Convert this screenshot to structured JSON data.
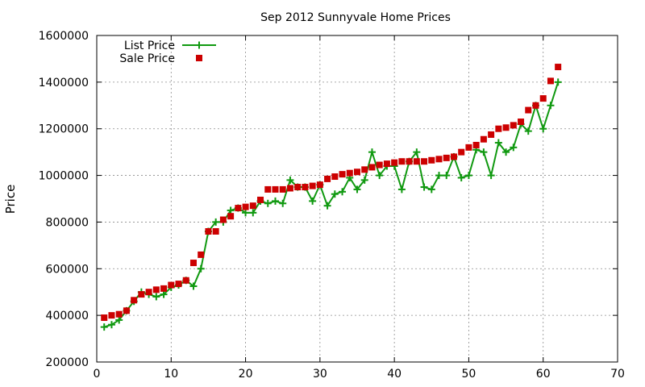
{
  "chart_data": {
    "type": "scatter",
    "title": "Sep 2012 Sunnyvale Home Prices",
    "xlabel": "",
    "ylabel": "Price",
    "xlim": [
      0,
      70
    ],
    "ylim": [
      200000,
      1600000
    ],
    "xticks": [
      0,
      10,
      20,
      30,
      40,
      50,
      60,
      70
    ],
    "yticks": [
      200000,
      400000,
      600000,
      800000,
      1000000,
      1200000,
      1400000,
      1600000
    ],
    "grid": true,
    "legend_position": "top-left",
    "series": [
      {
        "name": "List Price",
        "style": "line-with-plus-markers",
        "color": "#109910",
        "x": [
          1,
          2,
          3,
          4,
          5,
          6,
          7,
          8,
          9,
          10,
          11,
          12,
          13,
          14,
          15,
          16,
          17,
          18,
          19,
          20,
          21,
          22,
          23,
          24,
          25,
          26,
          27,
          28,
          29,
          30,
          31,
          32,
          33,
          34,
          35,
          36,
          37,
          38,
          39,
          40,
          41,
          42,
          43,
          44,
          45,
          46,
          47,
          48,
          49,
          50,
          51,
          52,
          53,
          54,
          55,
          56,
          57,
          58,
          59,
          60,
          61,
          62
        ],
        "y": [
          350000,
          360000,
          380000,
          420000,
          460000,
          500000,
          490000,
          480000,
          490000,
          520000,
          530000,
          550000,
          525000,
          600000,
          760000,
          800000,
          800000,
          850000,
          860000,
          840000,
          840000,
          890000,
          880000,
          890000,
          880000,
          980000,
          950000,
          950000,
          890000,
          960000,
          870000,
          920000,
          930000,
          990000,
          940000,
          980000,
          1100000,
          1000000,
          1040000,
          1040000,
          940000,
          1060000,
          1100000,
          950000,
          940000,
          1000000,
          1000000,
          1080000,
          990000,
          1000000,
          1110000,
          1100000,
          1000000,
          1140000,
          1100000,
          1120000,
          1220000,
          1190000,
          1300000,
          1200000,
          1300000,
          1400000
        ]
      },
      {
        "name": "Sale Price",
        "style": "square-markers",
        "color": "#cc0000",
        "x": [
          1,
          2,
          3,
          4,
          5,
          6,
          7,
          8,
          9,
          10,
          11,
          12,
          13,
          14,
          15,
          16,
          17,
          18,
          19,
          20,
          21,
          22,
          23,
          24,
          25,
          26,
          27,
          28,
          29,
          30,
          31,
          32,
          33,
          34,
          35,
          36,
          37,
          38,
          39,
          40,
          41,
          42,
          43,
          44,
          45,
          46,
          47,
          48,
          49,
          50,
          51,
          52,
          53,
          54,
          55,
          56,
          57,
          58,
          59,
          60,
          61,
          62
        ],
        "y": [
          390000,
          400000,
          405000,
          420000,
          465000,
          490000,
          500000,
          510000,
          515000,
          530000,
          535000,
          550000,
          625000,
          660000,
          760000,
          760000,
          810000,
          825000,
          860000,
          865000,
          870000,
          895000,
          940000,
          940000,
          940000,
          945000,
          950000,
          950000,
          955000,
          960000,
          985000,
          995000,
          1005000,
          1010000,
          1015000,
          1025000,
          1035000,
          1045000,
          1050000,
          1055000,
          1060000,
          1060000,
          1060000,
          1060000,
          1065000,
          1070000,
          1075000,
          1080000,
          1100000,
          1120000,
          1130000,
          1155000,
          1175000,
          1200000,
          1205000,
          1215000,
          1230000,
          1280000,
          1300000,
          1330000,
          1405000,
          1465000
        ]
      }
    ]
  }
}
